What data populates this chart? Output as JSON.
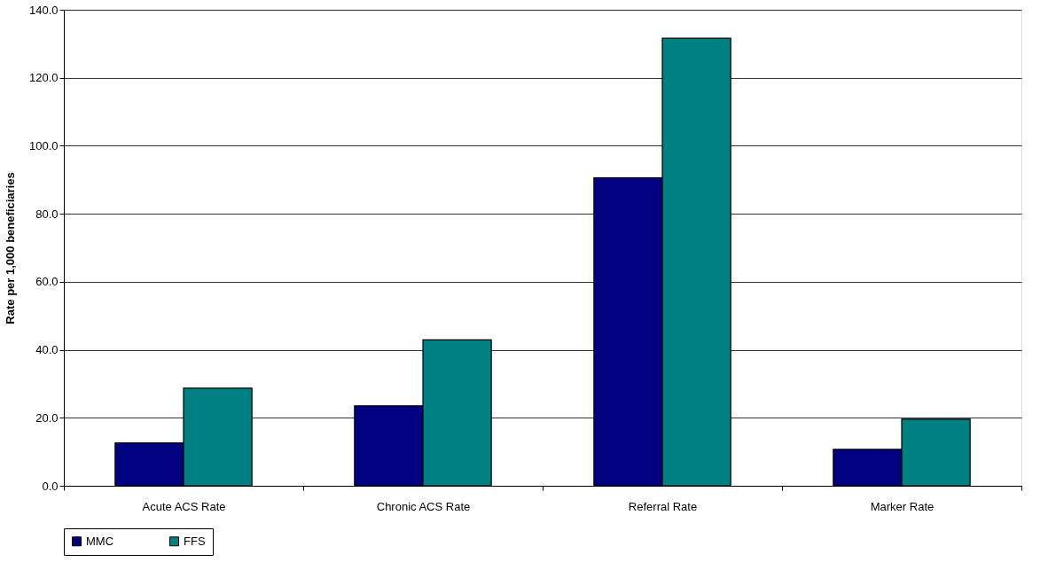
{
  "chart_data": {
    "type": "bar",
    "ylabel": "Rate per 1,000 beneficiaries",
    "categories": [
      "Acute ACS Rate",
      "Chronic ACS Rate",
      "Referral Rate",
      "Marker Rate"
    ],
    "series": [
      {
        "name": "MMC",
        "color": "#000080",
        "values": [
          12.6,
          23.5,
          90.6,
          10.7
        ]
      },
      {
        "name": "FFS",
        "color": "#008080",
        "values": [
          28.7,
          42.9,
          131.6,
          19.6
        ]
      }
    ],
    "ylim": [
      0,
      140
    ],
    "yticks": [
      {
        "value": 0,
        "label": "0.0"
      },
      {
        "value": 20,
        "label": "20.0"
      },
      {
        "value": 40,
        "label": "40.0"
      },
      {
        "value": 60,
        "label": "60.0"
      },
      {
        "value": 80,
        "label": "80.0"
      },
      {
        "value": 100,
        "label": "100.0"
      },
      {
        "value": 120,
        "label": "120.0"
      },
      {
        "value": 140,
        "label": "140.0"
      }
    ],
    "grid": "y",
    "legend": "bottom"
  }
}
